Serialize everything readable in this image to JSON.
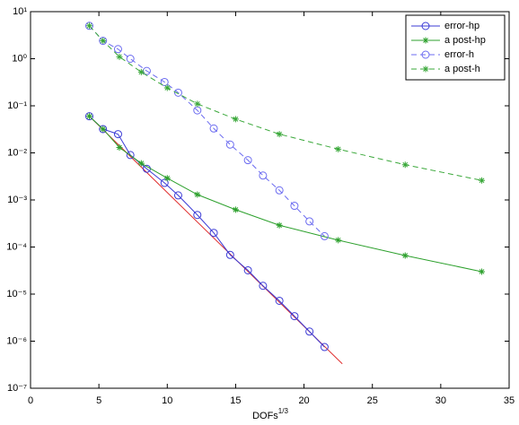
{
  "chart_data": {
    "type": "line",
    "x_label": "DOFs",
    "x_label_exponent": "1/3",
    "log_y": true,
    "legend": "top-right",
    "xlim": [
      0,
      35
    ],
    "xticks": [
      0,
      5,
      10,
      15,
      20,
      25,
      30,
      35
    ],
    "ylim": [
      1e-07,
      10
    ],
    "yticks": [
      {
        "value": 1e-07,
        "label": "10⁻⁷"
      },
      {
        "value": 1e-06,
        "label": "10⁻⁶"
      },
      {
        "value": 1e-05,
        "label": "10⁻⁵"
      },
      {
        "value": 0.0001,
        "label": "10⁻⁴"
      },
      {
        "value": 0.001,
        "label": "10⁻³"
      },
      {
        "value": 0.01,
        "label": "10⁻²"
      },
      {
        "value": 0.1,
        "label": "10⁻¹"
      },
      {
        "value": 1,
        "label": "10⁰"
      },
      {
        "value": 10,
        "label": "10¹"
      }
    ],
    "series": [
      {
        "name": "error-hp",
        "color": "#3b3bd6",
        "linestyle": "solid",
        "marker": "circle",
        "x": [
          4.3,
          5.3,
          6.4,
          7.3,
          8.5,
          9.8,
          10.8,
          12.2,
          13.4,
          14.6,
          15.9,
          17,
          18.2,
          19.3,
          20.4,
          21.5
        ],
        "values": [
          0.06,
          0.032,
          0.025,
          0.009,
          0.0046,
          0.0023,
          0.00125,
          0.00048,
          0.0002,
          6.8e-05,
          3.2e-05,
          1.5e-05,
          7.2e-06,
          3.4e-06,
          1.6e-06,
          7.5e-07
        ]
      },
      {
        "name": "a post-hp",
        "color": "#2ca02c",
        "linestyle": "solid",
        "marker": "star",
        "x": [
          4.3,
          5.3,
          6.5,
          8.1,
          10,
          12.2,
          15,
          18.2,
          22.5,
          27.4,
          33
        ],
        "values": [
          0.06,
          0.032,
          0.013,
          0.006,
          0.0029,
          0.0013,
          0.00062,
          0.00029,
          0.00014,
          6.6e-05,
          3e-05
        ]
      },
      {
        "name": "error-h",
        "color": "#6b6bf0",
        "linestyle": "dashed",
        "marker": "circle",
        "x": [
          4.3,
          5.3,
          6.4,
          7.3,
          8.5,
          9.8,
          10.8,
          12.2,
          13.4,
          14.6,
          15.9,
          17,
          18.2,
          19.3,
          20.4,
          21.5
        ],
        "values": [
          5,
          2.4,
          1.6,
          1.0,
          0.55,
          0.32,
          0.19,
          0.08,
          0.033,
          0.015,
          0.007,
          0.0033,
          0.0016,
          0.00075,
          0.00035,
          0.00017
        ]
      },
      {
        "name": "a post-h",
        "color": "#3aa83a",
        "linestyle": "dashed",
        "marker": "star",
        "x": [
          4.3,
          5.3,
          6.5,
          8.1,
          10,
          12.2,
          15,
          18.2,
          22.5,
          27.4,
          33
        ],
        "values": [
          5,
          2.4,
          1.1,
          0.52,
          0.24,
          0.11,
          0.052,
          0.025,
          0.012,
          0.0056,
          0.0026
        ]
      }
    ],
    "reference_line": {
      "color": "#e03030",
      "x": [
        4.3,
        22.8
      ],
      "values": [
        0.06,
        3.3e-07
      ]
    }
  }
}
